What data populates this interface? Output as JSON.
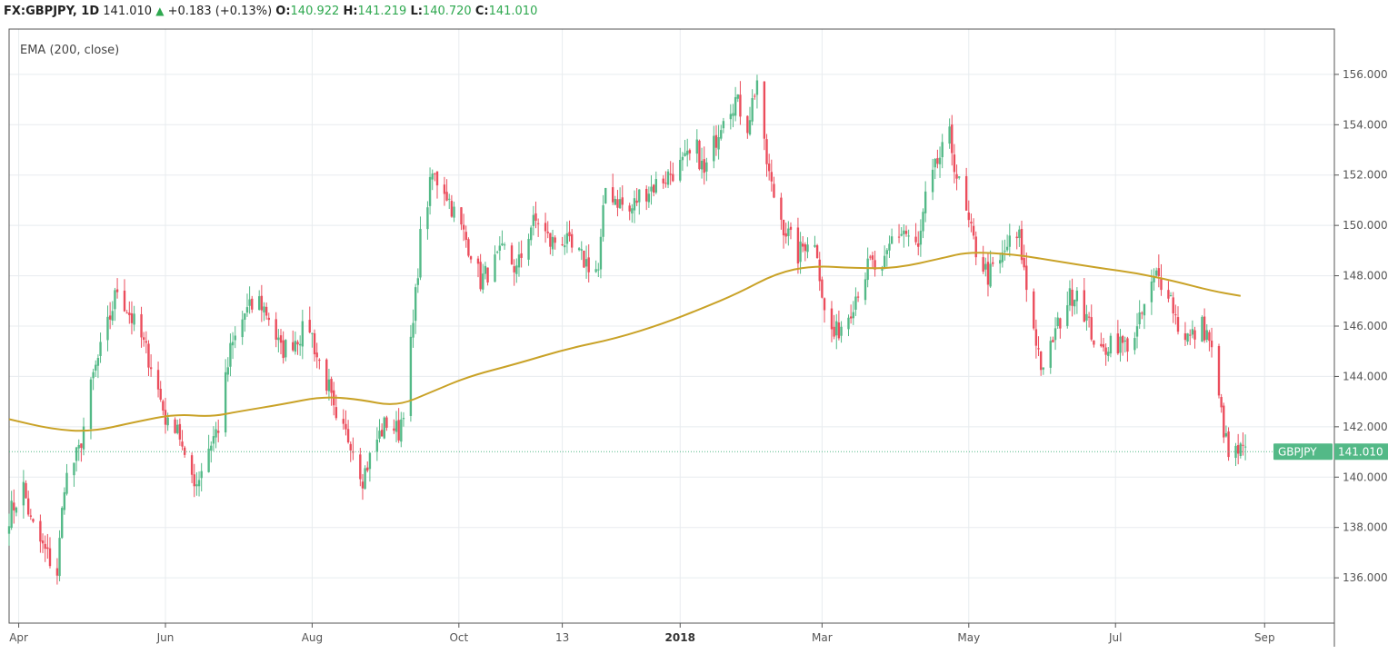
{
  "header": {
    "symbol": "FX:GBPJPY, 1D",
    "last": "141.010",
    "change": "+0.183 (+0.13%)",
    "open_label": "O:",
    "open": "140.922",
    "high_label": "H:",
    "high": "141.219",
    "low_label": "L:",
    "low": "140.720",
    "close_label": "C:",
    "close": "141.010"
  },
  "indicator_label": "EMA (200, close)",
  "price_tag": {
    "symbol": "GBPJPY",
    "value": "141.010"
  },
  "colors": {
    "up": "#53b987",
    "down": "#eb4d5c",
    "ema": "#c9a227",
    "tag": "#53b987",
    "last_line": "#53b987"
  },
  "chart_data": {
    "type": "candlestick",
    "title": "FX:GBPJPY, 1D",
    "ylim": [
      134.2,
      157.8
    ],
    "y_ticks": [
      136,
      138,
      140,
      142,
      144,
      146,
      148,
      150,
      152,
      154,
      156
    ],
    "y_tick_labels": [
      "136.000",
      "138.000",
      "140.000",
      "142.000",
      "144.000",
      "146.000",
      "148.000",
      "150.000",
      "152.000",
      "154.000",
      "156.000"
    ],
    "x_ticks": [
      {
        "label": "Apr",
        "date": "2017-04-01"
      },
      {
        "label": "Jun",
        "date": "2017-06-01"
      },
      {
        "label": "Aug",
        "date": "2017-08-01"
      },
      {
        "label": "Oct",
        "date": "2017-10-01"
      },
      {
        "label": "13",
        "date": "2017-11-13"
      },
      {
        "label": "2018",
        "date": "2018-01-01",
        "bold": true
      },
      {
        "label": "Mar",
        "date": "2018-03-01"
      },
      {
        "label": "May",
        "date": "2018-05-01"
      },
      {
        "label": "Jul",
        "date": "2018-07-01"
      },
      {
        "label": "Sep",
        "date": "2018-09-01"
      }
    ],
    "xlim": [
      "2017-03-28",
      "2018-09-30"
    ],
    "price_anchors": [
      [
        "2017-03-28",
        138.5
      ],
      [
        "2017-04-03",
        139.6
      ],
      [
        "2017-04-06",
        138.2
      ],
      [
        "2017-04-11",
        137.2
      ],
      [
        "2017-04-17",
        136.2
      ],
      [
        "2017-04-20",
        139.8
      ],
      [
        "2017-04-26",
        141.0
      ],
      [
        "2017-05-02",
        144.0
      ],
      [
        "2017-05-08",
        146.0
      ],
      [
        "2017-05-12",
        147.5
      ],
      [
        "2017-05-17",
        146.5
      ],
      [
        "2017-05-22",
        145.5
      ],
      [
        "2017-05-26",
        144.5
      ],
      [
        "2017-06-02",
        142.0
      ],
      [
        "2017-06-06",
        142.2
      ],
      [
        "2017-06-09",
        140.5
      ],
      [
        "2017-06-14",
        139.8
      ],
      [
        "2017-06-19",
        141.2
      ],
      [
        "2017-06-23",
        142.0
      ],
      [
        "2017-06-28",
        145.0
      ],
      [
        "2017-07-04",
        146.5
      ],
      [
        "2017-07-10",
        147.0
      ],
      [
        "2017-07-14",
        146.4
      ],
      [
        "2017-07-19",
        145.0
      ],
      [
        "2017-07-25",
        145.5
      ],
      [
        "2017-07-31",
        146.0
      ],
      [
        "2017-08-03",
        144.8
      ],
      [
        "2017-08-08",
        143.5
      ],
      [
        "2017-08-11",
        142.0
      ],
      [
        "2017-08-17",
        141.5
      ],
      [
        "2017-08-22",
        140.0
      ],
      [
        "2017-08-28",
        141.5
      ],
      [
        "2017-09-01",
        142.2
      ],
      [
        "2017-09-06",
        141.8
      ],
      [
        "2017-09-08",
        142.8
      ],
      [
        "2017-09-12",
        146.0
      ],
      [
        "2017-09-15",
        149.5
      ],
      [
        "2017-09-20",
        152.0
      ],
      [
        "2017-09-25",
        151.5
      ],
      [
        "2017-09-29",
        150.5
      ],
      [
        "2017-10-06",
        149.0
      ],
      [
        "2017-10-10",
        147.8
      ],
      [
        "2017-10-16",
        148.5
      ],
      [
        "2017-10-20",
        149.0
      ],
      [
        "2017-10-25",
        148.2
      ],
      [
        "2017-10-31",
        150.0
      ],
      [
        "2017-11-03",
        150.2
      ],
      [
        "2017-11-08",
        149.3
      ],
      [
        "2017-11-13",
        149.5
      ],
      [
        "2017-11-17",
        149.0
      ],
      [
        "2017-11-22",
        148.6
      ],
      [
        "2017-11-28",
        148.2
      ],
      [
        "2017-12-01",
        151.5
      ],
      [
        "2017-12-06",
        151.0
      ],
      [
        "2017-12-11",
        150.5
      ],
      [
        "2017-12-15",
        151.2
      ],
      [
        "2017-12-20",
        151.5
      ],
      [
        "2017-12-27",
        152.0
      ],
      [
        "2018-01-03",
        152.5
      ],
      [
        "2018-01-08",
        153.0
      ],
      [
        "2018-01-11",
        152.0
      ],
      [
        "2018-01-16",
        153.5
      ],
      [
        "2018-01-19",
        154.5
      ],
      [
        "2018-01-24",
        155.0
      ],
      [
        "2018-01-29",
        154.0
      ],
      [
        "2018-02-02",
        155.8
      ],
      [
        "2018-02-05",
        153.0
      ],
      [
        "2018-02-08",
        151.5
      ],
      [
        "2018-02-13",
        150.0
      ],
      [
        "2018-02-19",
        148.8
      ],
      [
        "2018-02-23",
        149.5
      ],
      [
        "2018-02-27",
        149.0
      ],
      [
        "2018-03-02",
        146.5
      ],
      [
        "2018-03-06",
        145.6
      ],
      [
        "2018-03-12",
        146.5
      ],
      [
        "2018-03-16",
        147.5
      ],
      [
        "2018-03-21",
        148.5
      ],
      [
        "2018-03-26",
        148.0
      ],
      [
        "2018-03-30",
        149.5
      ],
      [
        "2018-04-04",
        149.8
      ],
      [
        "2018-04-10",
        149.0
      ],
      [
        "2018-04-13",
        151.0
      ],
      [
        "2018-04-18",
        152.5
      ],
      [
        "2018-04-23",
        153.5
      ],
      [
        "2018-04-26",
        152.0
      ],
      [
        "2018-05-01",
        150.0
      ],
      [
        "2018-05-04",
        149.0
      ],
      [
        "2018-05-09",
        148.0
      ],
      [
        "2018-05-14",
        148.5
      ],
      [
        "2018-05-17",
        149.2
      ],
      [
        "2018-05-22",
        149.5
      ],
      [
        "2018-05-25",
        147.5
      ],
      [
        "2018-05-29",
        145.5
      ],
      [
        "2018-06-01",
        144.0
      ],
      [
        "2018-06-05",
        145.5
      ],
      [
        "2018-06-11",
        147.0
      ],
      [
        "2018-06-15",
        147.5
      ],
      [
        "2018-06-20",
        146.0
      ],
      [
        "2018-06-25",
        144.8
      ],
      [
        "2018-06-29",
        145.5
      ],
      [
        "2018-07-05",
        145.2
      ],
      [
        "2018-07-10",
        145.8
      ],
      [
        "2018-07-13",
        146.8
      ],
      [
        "2018-07-18",
        148.0
      ],
      [
        "2018-07-23",
        147.5
      ],
      [
        "2018-07-27",
        146.0
      ],
      [
        "2018-08-01",
        145.5
      ],
      [
        "2018-08-06",
        146.0
      ],
      [
        "2018-08-09",
        145.5
      ],
      [
        "2018-08-14",
        142.5
      ],
      [
        "2018-08-17",
        140.8
      ],
      [
        "2018-08-21",
        141.0
      ],
      [
        "2018-08-24",
        141.01
      ]
    ],
    "ema": {
      "name": "EMA (200, close)",
      "points": [
        [
          "2017-03-28",
          142.3
        ],
        [
          "2017-04-15",
          141.9
        ],
        [
          "2017-05-01",
          141.8
        ],
        [
          "2017-05-20",
          142.2
        ],
        [
          "2017-06-05",
          142.5
        ],
        [
          "2017-06-20",
          142.4
        ],
        [
          "2017-07-01",
          142.6
        ],
        [
          "2017-07-20",
          142.9
        ],
        [
          "2017-08-05",
          143.2
        ],
        [
          "2017-08-20",
          143.1
        ],
        [
          "2017-09-05",
          142.8
        ],
        [
          "2017-09-20",
          143.4
        ],
        [
          "2017-10-05",
          144.0
        ],
        [
          "2017-10-25",
          144.5
        ],
        [
          "2017-11-15",
          145.1
        ],
        [
          "2017-12-05",
          145.5
        ],
        [
          "2017-12-25",
          146.1
        ],
        [
          "2018-01-10",
          146.7
        ],
        [
          "2018-01-25",
          147.3
        ],
        [
          "2018-02-10",
          148.1
        ],
        [
          "2018-02-25",
          148.4
        ],
        [
          "2018-03-15",
          148.3
        ],
        [
          "2018-04-01",
          148.3
        ],
        [
          "2018-04-20",
          148.7
        ],
        [
          "2018-05-01",
          148.95
        ],
        [
          "2018-05-20",
          148.85
        ],
        [
          "2018-06-05",
          148.6
        ],
        [
          "2018-06-25",
          148.3
        ],
        [
          "2018-07-10",
          148.1
        ],
        [
          "2018-07-25",
          147.8
        ],
        [
          "2018-08-10",
          147.4
        ],
        [
          "2018-08-22",
          147.2
        ]
      ]
    },
    "last_price": 141.01,
    "grid": true
  }
}
